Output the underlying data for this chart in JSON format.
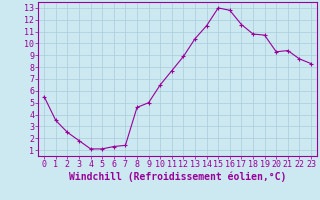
{
  "x": [
    0,
    1,
    2,
    3,
    4,
    5,
    6,
    7,
    8,
    9,
    10,
    11,
    12,
    13,
    14,
    15,
    16,
    17,
    18,
    19,
    20,
    21,
    22,
    23
  ],
  "y": [
    5.5,
    3.5,
    2.5,
    1.8,
    1.1,
    1.1,
    1.3,
    1.4,
    4.6,
    5.0,
    6.5,
    7.7,
    8.9,
    10.4,
    11.5,
    13.0,
    12.8,
    11.6,
    10.8,
    10.7,
    9.3,
    9.4,
    8.7,
    8.3
  ],
  "line_color": "#990099",
  "marker": "+",
  "marker_size": 3,
  "background_color": "#cce8f0",
  "grid_color": "#aaccdd",
  "xlabel": "Windchill (Refroidissement éolien,°C)",
  "xlim": [
    -0.5,
    23.5
  ],
  "ylim": [
    0.5,
    13.5
  ],
  "yticks": [
    1,
    2,
    3,
    4,
    5,
    6,
    7,
    8,
    9,
    10,
    11,
    12,
    13
  ],
  "xticks": [
    0,
    1,
    2,
    3,
    4,
    5,
    6,
    7,
    8,
    9,
    10,
    11,
    12,
    13,
    14,
    15,
    16,
    17,
    18,
    19,
    20,
    21,
    22,
    23
  ],
  "label_color": "#990099",
  "tick_color": "#990099",
  "spine_color": "#990099",
  "font_size": 6,
  "xlabel_font_size": 7
}
